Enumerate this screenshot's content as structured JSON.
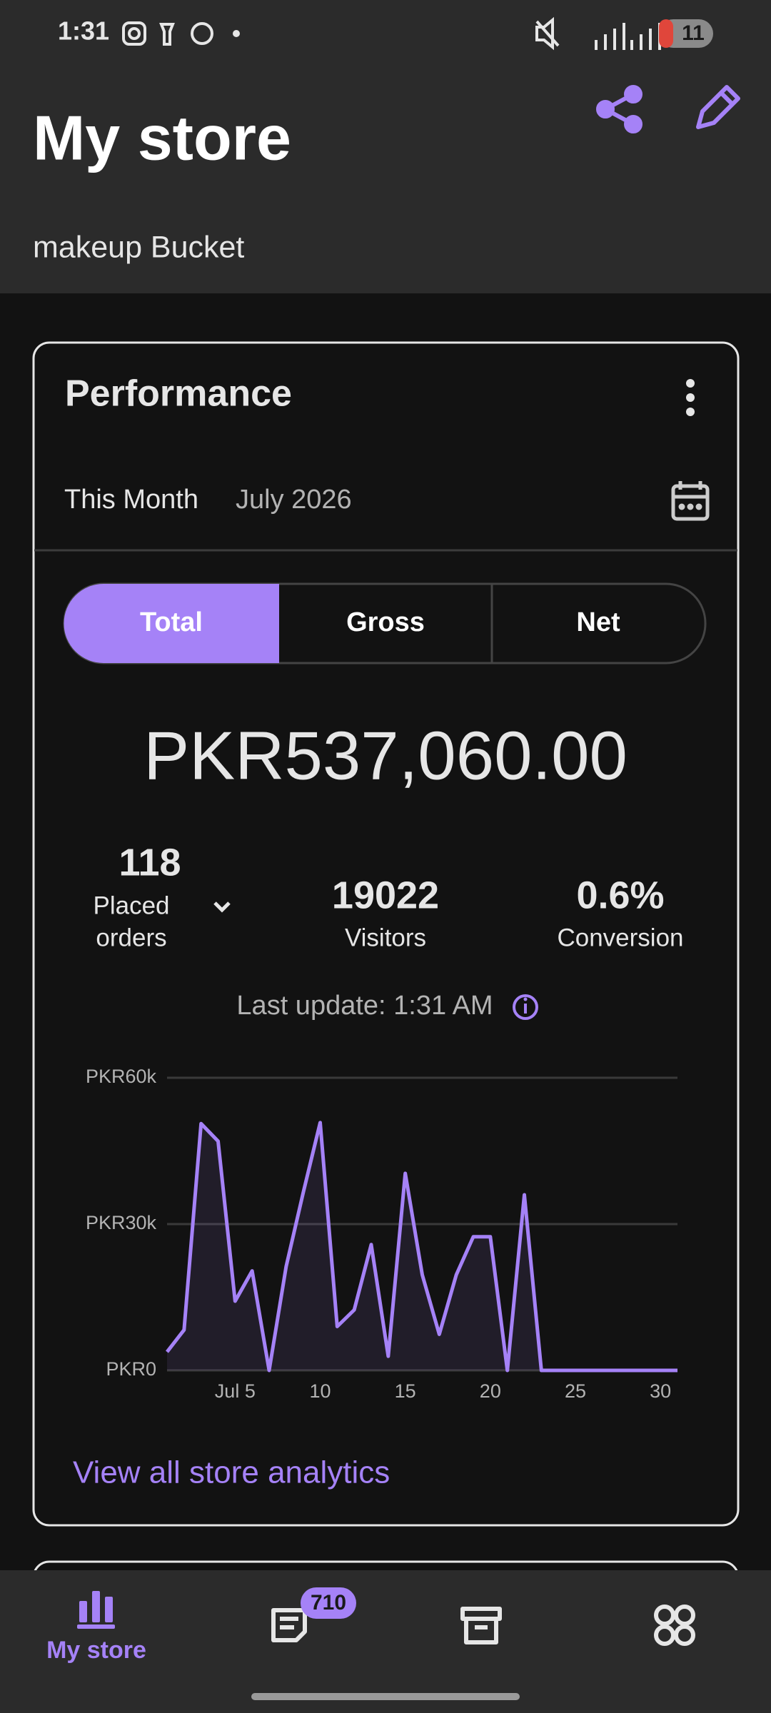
{
  "status_bar": {
    "time": "1:31",
    "battery": "11"
  },
  "header": {
    "title": "My store",
    "subtitle": "makeup Bucket"
  },
  "card": {
    "title": "Performance",
    "period_label": "This Month",
    "period_value": "July 2026",
    "tabs": [
      "Total",
      "Gross",
      "Net"
    ],
    "amount": "PKR537,060.00",
    "stats": [
      {
        "value": "118",
        "label_lines": [
          "Placed",
          "orders"
        ]
      },
      {
        "value": "19022",
        "label": "Visitors"
      },
      {
        "value": "0.6%",
        "label": "Conversion"
      }
    ],
    "last_update": "Last update: 1:31 AM",
    "link": "View all store analytics"
  },
  "chart_data": {
    "type": "line",
    "x": [
      1,
      2,
      3,
      4,
      5,
      6,
      7,
      8,
      9,
      10,
      11,
      12,
      13,
      14,
      15,
      16,
      17,
      18,
      19,
      20,
      21,
      22,
      23,
      24,
      25,
      26,
      27,
      28,
      29,
      30,
      31
    ],
    "values": [
      3800,
      8300,
      50600,
      47000,
      14200,
      20400,
      0,
      21300,
      36400,
      50800,
      9000,
      12400,
      25800,
      2900,
      40400,
      19600,
      7400,
      19600,
      27400,
      27400,
      0,
      36000,
      0,
      0,
      0,
      0,
      0,
      0,
      0,
      0,
      0
    ],
    "color": "#a582f7",
    "xlim": [
      1,
      31
    ],
    "xticks": [
      {
        "value": 5,
        "label": "Jul 5"
      },
      10,
      15,
      20,
      25,
      30
    ],
    "ylim": [
      0,
      60000
    ],
    "yticks": [
      {
        "value": 0,
        "label": "PKR0"
      },
      {
        "value": 30000,
        "label": "PKR30k"
      },
      {
        "value": 60000,
        "label": "PKR60k"
      }
    ],
    "grid": true
  },
  "nav": {
    "active_label": "My store",
    "badge": "710"
  }
}
